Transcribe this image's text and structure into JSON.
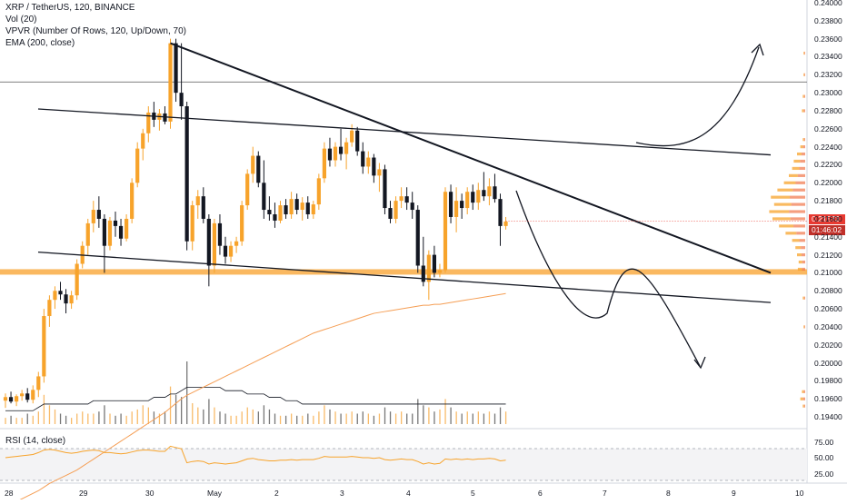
{
  "legend": {
    "title": "XRP / TetherUS, 120, BINANCE",
    "vol": "Vol (20)",
    "vpvr": "VPVR (Number Of Rows, 120, Up/Down, 70)",
    "ema": "EMA (200, close)",
    "rsi": "RSI (14, close)"
  },
  "price_axis": [
    "0.24000",
    "0.23800",
    "0.23600",
    "0.23400",
    "0.23200",
    "0.23000",
    "0.22800",
    "0.22600",
    "0.22400",
    "0.22200",
    "0.22000",
    "0.21800",
    "0.21600",
    "0.21400",
    "0.21200",
    "0.21000",
    "0.20800",
    "0.20600",
    "0.20400",
    "0.20200",
    "0.20000",
    "0.19800",
    "0.19600",
    "0.19400"
  ],
  "rsi_axis": [
    "75.00",
    "50.00",
    "25.00"
  ],
  "date_axis": [
    "28",
    "29",
    "30",
    "May",
    "2",
    "3",
    "4",
    "5",
    "6",
    "7",
    "8",
    "9",
    "10"
  ],
  "current_price": "0.21573",
  "countdown": "01:46:02",
  "colors": {
    "up": "#f7a32b",
    "down": "#131722",
    "ema": "#f59e54",
    "rsi": "#f7a32b",
    "price_tag": "#e83a32",
    "support_band": "#f9b04f"
  },
  "chart_data": {
    "type": "candlestick",
    "symbol": "XRP / TetherUS",
    "interval": "120",
    "exchange": "BINANCE",
    "price_range": [
      0.193,
      0.241
    ],
    "x_range_days": [
      "28",
      "10"
    ],
    "last_close": 0.21573,
    "support_level": 0.2101,
    "resistance_line": 0.2312,
    "ohlc": [
      {
        "o": 0.1958,
        "h": 0.1966,
        "l": 0.195,
        "c": 0.1962
      },
      {
        "o": 0.1962,
        "h": 0.1968,
        "l": 0.1955,
        "c": 0.1957
      },
      {
        "o": 0.1957,
        "h": 0.1965,
        "l": 0.1952,
        "c": 0.1963
      },
      {
        "o": 0.1963,
        "h": 0.197,
        "l": 0.1958,
        "c": 0.1966
      },
      {
        "o": 0.1966,
        "h": 0.1972,
        "l": 0.1956,
        "c": 0.1959
      },
      {
        "o": 0.1959,
        "h": 0.1975,
        "l": 0.1955,
        "c": 0.197
      },
      {
        "o": 0.197,
        "h": 0.199,
        "l": 0.1962,
        "c": 0.1985
      },
      {
        "o": 0.1985,
        "h": 0.206,
        "l": 0.1978,
        "c": 0.2052
      },
      {
        "o": 0.2052,
        "h": 0.2075,
        "l": 0.204,
        "c": 0.207
      },
      {
        "o": 0.207,
        "h": 0.2085,
        "l": 0.206,
        "c": 0.208
      },
      {
        "o": 0.208,
        "h": 0.209,
        "l": 0.207,
        "c": 0.2076
      },
      {
        "o": 0.2076,
        "h": 0.2082,
        "l": 0.2055,
        "c": 0.2066
      },
      {
        "o": 0.2066,
        "h": 0.208,
        "l": 0.206,
        "c": 0.2075
      },
      {
        "o": 0.2075,
        "h": 0.2115,
        "l": 0.207,
        "c": 0.211
      },
      {
        "o": 0.211,
        "h": 0.2135,
        "l": 0.2105,
        "c": 0.213
      },
      {
        "o": 0.213,
        "h": 0.216,
        "l": 0.212,
        "c": 0.2155
      },
      {
        "o": 0.2155,
        "h": 0.218,
        "l": 0.2145,
        "c": 0.217
      },
      {
        "o": 0.217,
        "h": 0.2185,
        "l": 0.215,
        "c": 0.216
      },
      {
        "o": 0.216,
        "h": 0.2165,
        "l": 0.21,
        "c": 0.213
      },
      {
        "o": 0.213,
        "h": 0.2162,
        "l": 0.2125,
        "c": 0.2158
      },
      {
        "o": 0.2158,
        "h": 0.2168,
        "l": 0.214,
        "c": 0.2152
      },
      {
        "o": 0.2152,
        "h": 0.216,
        "l": 0.213,
        "c": 0.2138
      },
      {
        "o": 0.2138,
        "h": 0.2165,
        "l": 0.2135,
        "c": 0.216
      },
      {
        "o": 0.216,
        "h": 0.2205,
        "l": 0.2155,
        "c": 0.22
      },
      {
        "o": 0.22,
        "h": 0.2245,
        "l": 0.2195,
        "c": 0.2238
      },
      {
        "o": 0.2238,
        "h": 0.226,
        "l": 0.2225,
        "c": 0.2255
      },
      {
        "o": 0.2255,
        "h": 0.2285,
        "l": 0.2245,
        "c": 0.2278
      },
      {
        "o": 0.2278,
        "h": 0.229,
        "l": 0.2262,
        "c": 0.227
      },
      {
        "o": 0.227,
        "h": 0.2282,
        "l": 0.2258,
        "c": 0.2277
      },
      {
        "o": 0.2277,
        "h": 0.2285,
        "l": 0.2265,
        "c": 0.2268
      },
      {
        "o": 0.2268,
        "h": 0.236,
        "l": 0.226,
        "c": 0.2355
      },
      {
        "o": 0.2355,
        "h": 0.236,
        "l": 0.229,
        "c": 0.23
      },
      {
        "o": 0.23,
        "h": 0.2355,
        "l": 0.227,
        "c": 0.2285
      },
      {
        "o": 0.2285,
        "h": 0.229,
        "l": 0.2125,
        "c": 0.2135
      },
      {
        "o": 0.2135,
        "h": 0.218,
        "l": 0.2125,
        "c": 0.2175
      },
      {
        "o": 0.2175,
        "h": 0.2192,
        "l": 0.216,
        "c": 0.2185
      },
      {
        "o": 0.2185,
        "h": 0.2195,
        "l": 0.2155,
        "c": 0.216
      },
      {
        "o": 0.216,
        "h": 0.2165,
        "l": 0.2085,
        "c": 0.2108
      },
      {
        "o": 0.2108,
        "h": 0.216,
        "l": 0.21,
        "c": 0.2155
      },
      {
        "o": 0.2155,
        "h": 0.2165,
        "l": 0.212,
        "c": 0.213
      },
      {
        "o": 0.213,
        "h": 0.214,
        "l": 0.211,
        "c": 0.2118
      },
      {
        "o": 0.2118,
        "h": 0.2135,
        "l": 0.2112,
        "c": 0.213
      },
      {
        "o": 0.213,
        "h": 0.214,
        "l": 0.2122,
        "c": 0.2135
      },
      {
        "o": 0.2135,
        "h": 0.218,
        "l": 0.213,
        "c": 0.2175
      },
      {
        "o": 0.2175,
        "h": 0.2215,
        "l": 0.217,
        "c": 0.221
      },
      {
        "o": 0.221,
        "h": 0.224,
        "l": 0.22,
        "c": 0.223
      },
      {
        "o": 0.223,
        "h": 0.2235,
        "l": 0.2195,
        "c": 0.22
      },
      {
        "o": 0.22,
        "h": 0.2225,
        "l": 0.216,
        "c": 0.217
      },
      {
        "o": 0.217,
        "h": 0.2185,
        "l": 0.2158,
        "c": 0.2165
      },
      {
        "o": 0.2165,
        "h": 0.2178,
        "l": 0.215,
        "c": 0.2158
      },
      {
        "o": 0.2158,
        "h": 0.218,
        "l": 0.2155,
        "c": 0.2175
      },
      {
        "o": 0.2175,
        "h": 0.2182,
        "l": 0.216,
        "c": 0.2165
      },
      {
        "o": 0.2165,
        "h": 0.219,
        "l": 0.216,
        "c": 0.2182
      },
      {
        "o": 0.2182,
        "h": 0.2188,
        "l": 0.2165,
        "c": 0.217
      },
      {
        "o": 0.217,
        "h": 0.2184,
        "l": 0.2158,
        "c": 0.2178
      },
      {
        "o": 0.2178,
        "h": 0.2185,
        "l": 0.216,
        "c": 0.2165
      },
      {
        "o": 0.2165,
        "h": 0.218,
        "l": 0.216,
        "c": 0.2176
      },
      {
        "o": 0.2176,
        "h": 0.221,
        "l": 0.217,
        "c": 0.2205
      },
      {
        "o": 0.2205,
        "h": 0.2245,
        "l": 0.22,
        "c": 0.2238
      },
      {
        "o": 0.2238,
        "h": 0.225,
        "l": 0.2218,
        "c": 0.2225
      },
      {
        "o": 0.2225,
        "h": 0.2245,
        "l": 0.2218,
        "c": 0.224
      },
      {
        "o": 0.224,
        "h": 0.226,
        "l": 0.2225,
        "c": 0.2232
      },
      {
        "o": 0.2232,
        "h": 0.225,
        "l": 0.2215,
        "c": 0.2245
      },
      {
        "o": 0.2245,
        "h": 0.2265,
        "l": 0.224,
        "c": 0.2258
      },
      {
        "o": 0.2258,
        "h": 0.2262,
        "l": 0.223,
        "c": 0.2235
      },
      {
        "o": 0.2235,
        "h": 0.2245,
        "l": 0.221,
        "c": 0.2218
      },
      {
        "o": 0.2218,
        "h": 0.2235,
        "l": 0.221,
        "c": 0.2228
      },
      {
        "o": 0.2228,
        "h": 0.2232,
        "l": 0.22,
        "c": 0.2208
      },
      {
        "o": 0.2208,
        "h": 0.2222,
        "l": 0.219,
        "c": 0.2215
      },
      {
        "o": 0.2215,
        "h": 0.222,
        "l": 0.2165,
        "c": 0.2172
      },
      {
        "o": 0.2172,
        "h": 0.218,
        "l": 0.2155,
        "c": 0.216
      },
      {
        "o": 0.216,
        "h": 0.2185,
        "l": 0.2155,
        "c": 0.218
      },
      {
        "o": 0.218,
        "h": 0.2195,
        "l": 0.2172,
        "c": 0.2185
      },
      {
        "o": 0.2185,
        "h": 0.2195,
        "l": 0.217,
        "c": 0.2178
      },
      {
        "o": 0.2178,
        "h": 0.219,
        "l": 0.216,
        "c": 0.217
      },
      {
        "o": 0.217,
        "h": 0.2175,
        "l": 0.21,
        "c": 0.2108
      },
      {
        "o": 0.2108,
        "h": 0.214,
        "l": 0.2085,
        "c": 0.209
      },
      {
        "o": 0.209,
        "h": 0.2125,
        "l": 0.207,
        "c": 0.212
      },
      {
        "o": 0.212,
        "h": 0.213,
        "l": 0.2095,
        "c": 0.21
      },
      {
        "o": 0.21,
        "h": 0.211,
        "l": 0.2095,
        "c": 0.2103
      },
      {
        "o": 0.2103,
        "h": 0.2195,
        "l": 0.21,
        "c": 0.219
      },
      {
        "o": 0.219,
        "h": 0.2198,
        "l": 0.2155,
        "c": 0.2162
      },
      {
        "o": 0.2162,
        "h": 0.2195,
        "l": 0.2145,
        "c": 0.218
      },
      {
        "o": 0.218,
        "h": 0.2188,
        "l": 0.216,
        "c": 0.2172
      },
      {
        "o": 0.2172,
        "h": 0.2195,
        "l": 0.2165,
        "c": 0.219
      },
      {
        "o": 0.219,
        "h": 0.2198,
        "l": 0.217,
        "c": 0.2178
      },
      {
        "o": 0.2178,
        "h": 0.22,
        "l": 0.217,
        "c": 0.2192
      },
      {
        "o": 0.2192,
        "h": 0.2212,
        "l": 0.218,
        "c": 0.2185
      },
      {
        "o": 0.2185,
        "h": 0.2205,
        "l": 0.2175,
        "c": 0.2196
      },
      {
        "o": 0.2196,
        "h": 0.221,
        "l": 0.2178,
        "c": 0.2182
      },
      {
        "o": 0.2182,
        "h": 0.2188,
        "l": 0.213,
        "c": 0.2152
      },
      {
        "o": 0.2152,
        "h": 0.2162,
        "l": 0.2148,
        "c": 0.2157
      }
    ],
    "volume": [
      3,
      4,
      3,
      3,
      5,
      4,
      6,
      14,
      9,
      7,
      5,
      4,
      3,
      5,
      6,
      5,
      5,
      6,
      9,
      5,
      4,
      5,
      4,
      6,
      7,
      9,
      8,
      6,
      5,
      6,
      18,
      14,
      13,
      30,
      10,
      8,
      7,
      12,
      8,
      6,
      5,
      4,
      4,
      6,
      8,
      7,
      6,
      9,
      7,
      5,
      4,
      4,
      5,
      4,
      4,
      5,
      4,
      6,
      9,
      7,
      6,
      5,
      5,
      6,
      5,
      6,
      5,
      4,
      5,
      8,
      6,
      5,
      6,
      5,
      5,
      12,
      9,
      8,
      6,
      7,
      12,
      8,
      6,
      5,
      6,
      5,
      6,
      5,
      6,
      5,
      8,
      6
    ],
    "rsi": [
      50,
      51,
      52,
      53,
      54,
      55,
      58,
      62,
      63,
      62,
      60,
      58,
      57,
      58,
      60,
      61,
      62,
      61,
      58,
      58,
      57,
      56,
      57,
      59,
      61,
      62,
      62,
      61,
      60,
      60,
      68,
      66,
      64,
      42,
      44,
      45,
      44,
      40,
      42,
      41,
      40,
      41,
      42,
      45,
      48,
      49,
      47,
      46,
      45,
      45,
      46,
      46,
      47,
      46,
      47,
      47,
      47,
      49,
      52,
      51,
      51,
      51,
      51,
      52,
      51,
      50,
      50,
      49,
      50,
      47,
      46,
      47,
      48,
      47,
      47,
      44,
      40,
      42,
      40,
      41,
      48,
      47,
      48,
      47,
      48,
      47,
      48,
      48,
      49,
      48,
      45,
      46
    ],
    "ema": [
      0.184,
      0.1843,
      0.1846,
      0.1849,
      0.1852,
      0.1855,
      0.1858,
      0.1862,
      0.1866,
      0.1869,
      0.1872,
      0.1875,
      0.1878,
      0.1881,
      0.1885,
      0.1889,
      0.1893,
      0.1897,
      0.1901,
      0.1905,
      0.1909,
      0.1913,
      0.1917,
      0.1921,
      0.1925,
      0.1929,
      0.1933,
      0.1937,
      0.1941,
      0.1945,
      0.195,
      0.1955,
      0.196,
      0.1964,
      0.1967,
      0.197,
      0.1973,
      0.1976,
      0.1979,
      0.1982,
      0.1985,
      0.1988,
      0.1991,
      0.1994,
      0.1997,
      0.2,
      0.2003,
      0.2006,
      0.2009,
      0.2012,
      0.2015,
      0.2018,
      0.2021,
      0.2024,
      0.2027,
      0.203,
      0.2033,
      0.2035,
      0.2037,
      0.2039,
      0.2041,
      0.2043,
      0.2045,
      0.2047,
      0.2049,
      0.2051,
      0.2053,
      0.2055,
      0.2056,
      0.2057,
      0.2058,
      0.2059,
      0.206,
      0.2061,
      0.2062,
      0.2063,
      0.2064,
      0.2064,
      0.2065,
      0.2065,
      0.2066,
      0.2067,
      0.2068,
      0.2069,
      0.207,
      0.2071,
      0.2072,
      0.2073,
      0.2074,
      0.2075,
      0.2076,
      0.2077
    ],
    "vol_ma": [
      4,
      4,
      4,
      4,
      4,
      4,
      5,
      6,
      6,
      6,
      6,
      6,
      6,
      6,
      6,
      6,
      7,
      7,
      7,
      7,
      7,
      7,
      7,
      7,
      7,
      7,
      7,
      8,
      8,
      8,
      9,
      9,
      10,
      11,
      11,
      11,
      11,
      11,
      11,
      11,
      10,
      10,
      10,
      10,
      9,
      9,
      9,
      9,
      8,
      8,
      8,
      7,
      7,
      7,
      6,
      6,
      6,
      6,
      6,
      6,
      6,
      6,
      6,
      6,
      6,
      6,
      6,
      6,
      6,
      6,
      6,
      6,
      6,
      6,
      6,
      6,
      6,
      6,
      6,
      6,
      6,
      6,
      6,
      6,
      6,
      6,
      6,
      6,
      6,
      6,
      6,
      6
    ],
    "vpvr": [
      {
        "price": 0.2248,
        "vol": 3
      },
      {
        "price": 0.224,
        "vol": 6
      },
      {
        "price": 0.2232,
        "vol": 10
      },
      {
        "price": 0.2224,
        "vol": 14
      },
      {
        "price": 0.2216,
        "vol": 16
      },
      {
        "price": 0.2208,
        "vol": 20
      },
      {
        "price": 0.22,
        "vol": 26
      },
      {
        "price": 0.2192,
        "vol": 34
      },
      {
        "price": 0.2184,
        "vol": 42
      },
      {
        "price": 0.2176,
        "vol": 38
      },
      {
        "price": 0.2168,
        "vol": 44
      },
      {
        "price": 0.216,
        "vol": 40
      },
      {
        "price": 0.2152,
        "vol": 32
      },
      {
        "price": 0.2144,
        "vol": 24
      },
      {
        "price": 0.2136,
        "vol": 16
      },
      {
        "price": 0.2128,
        "vol": 12
      },
      {
        "price": 0.212,
        "vol": 10
      },
      {
        "price": 0.2112,
        "vol": 8
      },
      {
        "price": 0.2104,
        "vol": 9
      },
      {
        "price": 0.228,
        "vol": 4
      },
      {
        "price": 0.2296,
        "vol": 3
      },
      {
        "price": 0.232,
        "vol": 2
      },
      {
        "price": 0.2344,
        "vol": 2
      },
      {
        "price": 0.2072,
        "vol": 3
      },
      {
        "price": 0.204,
        "vol": 2
      },
      {
        "price": 0.1968,
        "vol": 4
      },
      {
        "price": 0.196,
        "vol": 6
      },
      {
        "price": 0.1952,
        "vol": 3
      }
    ],
    "drawings": [
      {
        "kind": "line",
        "points": [
          [
            0.2355,
            30
          ],
          [
            0.21,
            120
          ]
        ]
      },
      {
        "kind": "line",
        "points": [
          [
            0.2282,
            0
          ],
          [
            0.2231,
            120
          ]
        ]
      },
      {
        "kind": "line",
        "points": [
          [
            0.2123,
            0
          ],
          [
            0.2067,
            120
          ]
        ]
      }
    ]
  }
}
